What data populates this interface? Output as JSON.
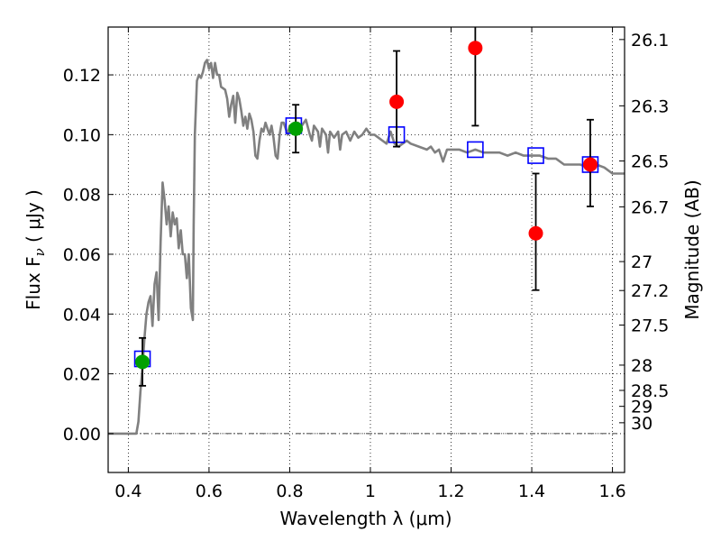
{
  "chart_data": {
    "type": "scatter",
    "title": "",
    "xlabel": "Wavelength  λ (μm)",
    "ylabel": "Flux  F",
    "ylabel_subscript": "ν",
    "ylabel_unit": " ( μJy )",
    "y2label": "Magnitude (AB)",
    "xlim": [
      0.35,
      1.63
    ],
    "ylim": [
      -0.013,
      0.136
    ],
    "grid": true,
    "x_ticks": [
      0.4,
      0.6,
      0.8,
      1.0,
      1.2,
      1.4,
      1.6
    ],
    "x_tick_labels": [
      "0.4",
      "0.6",
      "0.8",
      "1",
      "1.2",
      "1.4",
      "1.6"
    ],
    "y_ticks": [
      0.0,
      0.02,
      0.04,
      0.06,
      0.08,
      0.1,
      0.12
    ],
    "y_tick_labels": [
      "0.00",
      "0.02",
      "0.04",
      "0.06",
      "0.08",
      "0.10",
      "0.12"
    ],
    "y2_tick_labels": [
      "26.1",
      "26.3",
      "26.5",
      "26.7",
      "27",
      "27.2",
      "27.5",
      "28",
      "28.5",
      "29",
      "30"
    ],
    "y2_tick_values": [
      26.1,
      26.3,
      26.5,
      26.7,
      27.0,
      27.2,
      27.5,
      28.0,
      28.5,
      29.0,
      30.0
    ],
    "colors": {
      "model": "#808080",
      "model_photometry": "#0000ff",
      "detection": "#00a000",
      "upper_band": "#ff0000",
      "errorbar": "#000000",
      "zero_line": "#000000"
    },
    "series": [
      {
        "kind": "line",
        "points": [
          [
            0.35,
            0.0
          ],
          [
            0.41,
            0.0
          ],
          [
            0.42,
            0.0
          ],
          [
            0.425,
            0.004
          ],
          [
            0.43,
            0.014
          ],
          [
            0.435,
            0.022
          ],
          [
            0.44,
            0.032
          ],
          [
            0.445,
            0.04
          ],
          [
            0.45,
            0.044
          ],
          [
            0.455,
            0.046
          ],
          [
            0.46,
            0.036
          ],
          [
            0.465,
            0.05
          ],
          [
            0.47,
            0.054
          ],
          [
            0.475,
            0.038
          ],
          [
            0.48,
            0.064
          ],
          [
            0.485,
            0.084
          ],
          [
            0.49,
            0.078
          ],
          [
            0.495,
            0.07
          ],
          [
            0.5,
            0.076
          ],
          [
            0.505,
            0.066
          ],
          [
            0.51,
            0.074
          ],
          [
            0.515,
            0.07
          ],
          [
            0.52,
            0.072
          ],
          [
            0.525,
            0.062
          ],
          [
            0.53,
            0.068
          ],
          [
            0.535,
            0.06
          ],
          [
            0.54,
            0.06
          ],
          [
            0.545,
            0.052
          ],
          [
            0.55,
            0.06
          ],
          [
            0.555,
            0.042
          ],
          [
            0.56,
            0.038
          ],
          [
            0.562,
            0.07
          ],
          [
            0.565,
            0.1
          ],
          [
            0.57,
            0.118
          ],
          [
            0.575,
            0.12
          ],
          [
            0.58,
            0.119
          ],
          [
            0.585,
            0.121
          ],
          [
            0.59,
            0.124
          ],
          [
            0.595,
            0.125
          ],
          [
            0.6,
            0.122
          ],
          [
            0.605,
            0.124
          ],
          [
            0.61,
            0.119
          ],
          [
            0.615,
            0.124
          ],
          [
            0.62,
            0.12
          ],
          [
            0.625,
            0.12
          ],
          [
            0.63,
            0.116
          ],
          [
            0.64,
            0.115
          ],
          [
            0.645,
            0.112
          ],
          [
            0.65,
            0.106
          ],
          [
            0.655,
            0.11
          ],
          [
            0.66,
            0.113
          ],
          [
            0.665,
            0.104
          ],
          [
            0.67,
            0.114
          ],
          [
            0.675,
            0.112
          ],
          [
            0.68,
            0.108
          ],
          [
            0.685,
            0.103
          ],
          [
            0.69,
            0.106
          ],
          [
            0.695,
            0.102
          ],
          [
            0.7,
            0.107
          ],
          [
            0.705,
            0.105
          ],
          [
            0.71,
            0.101
          ],
          [
            0.715,
            0.093
          ],
          [
            0.72,
            0.092
          ],
          [
            0.725,
            0.098
          ],
          [
            0.73,
            0.102
          ],
          [
            0.735,
            0.101
          ],
          [
            0.74,
            0.104
          ],
          [
            0.745,
            0.102
          ],
          [
            0.75,
            0.1
          ],
          [
            0.755,
            0.103
          ],
          [
            0.76,
            0.099
          ],
          [
            0.765,
            0.093
          ],
          [
            0.77,
            0.092
          ],
          [
            0.775,
            0.1
          ],
          [
            0.78,
            0.104
          ],
          [
            0.785,
            0.104
          ],
          [
            0.79,
            0.102
          ],
          [
            0.795,
            0.1
          ],
          [
            0.8,
            0.103
          ],
          [
            0.81,
            0.102
          ],
          [
            0.82,
            0.104
          ],
          [
            0.83,
            0.103
          ],
          [
            0.84,
            0.105
          ],
          [
            0.85,
            0.1
          ],
          [
            0.855,
            0.098
          ],
          [
            0.86,
            0.103
          ],
          [
            0.87,
            0.101
          ],
          [
            0.875,
            0.096
          ],
          [
            0.88,
            0.102
          ],
          [
            0.89,
            0.1
          ],
          [
            0.895,
            0.094
          ],
          [
            0.9,
            0.101
          ],
          [
            0.91,
            0.099
          ],
          [
            0.92,
            0.101
          ],
          [
            0.925,
            0.095
          ],
          [
            0.93,
            0.1
          ],
          [
            0.94,
            0.101
          ],
          [
            0.95,
            0.098
          ],
          [
            0.96,
            0.101
          ],
          [
            0.97,
            0.099
          ],
          [
            0.98,
            0.1
          ],
          [
            0.99,
            0.102
          ],
          [
            1.0,
            0.1
          ],
          [
            1.01,
            0.1
          ],
          [
            1.02,
            0.099
          ],
          [
            1.03,
            0.098
          ],
          [
            1.04,
            0.097
          ],
          [
            1.05,
            0.101
          ],
          [
            1.06,
            0.097
          ],
          [
            1.07,
            0.096
          ],
          [
            1.08,
            0.097
          ],
          [
            1.09,
            0.098
          ],
          [
            1.1,
            0.097
          ],
          [
            1.12,
            0.096
          ],
          [
            1.14,
            0.095
          ],
          [
            1.15,
            0.096
          ],
          [
            1.16,
            0.094
          ],
          [
            1.17,
            0.095
          ],
          [
            1.18,
            0.091
          ],
          [
            1.19,
            0.095
          ],
          [
            1.2,
            0.095
          ],
          [
            1.22,
            0.095
          ],
          [
            1.24,
            0.094
          ],
          [
            1.26,
            0.095
          ],
          [
            1.28,
            0.094
          ],
          [
            1.3,
            0.094
          ],
          [
            1.32,
            0.094
          ],
          [
            1.34,
            0.093
          ],
          [
            1.36,
            0.094
          ],
          [
            1.38,
            0.093
          ],
          [
            1.4,
            0.093
          ],
          [
            1.42,
            0.093
          ],
          [
            1.44,
            0.092
          ],
          [
            1.46,
            0.092
          ],
          [
            1.48,
            0.09
          ],
          [
            1.5,
            0.09
          ],
          [
            1.52,
            0.09
          ],
          [
            1.54,
            0.089
          ],
          [
            1.56,
            0.09
          ],
          [
            1.58,
            0.089
          ],
          [
            1.6,
            0.087
          ],
          [
            1.63,
            0.087
          ]
        ]
      },
      {
        "kind": "open-squares",
        "x": [
          0.435,
          0.81,
          1.065,
          1.26,
          1.41,
          1.545
        ],
        "y": [
          0.025,
          0.103,
          0.1,
          0.095,
          0.093,
          0.09
        ]
      },
      {
        "kind": "filled-circles",
        "color_key": "detection",
        "x": [
          0.435,
          0.815
        ],
        "y": [
          0.024,
          0.102
        ],
        "yerr_low": [
          0.016,
          0.094
        ],
        "yerr_high": [
          0.032,
          0.11
        ]
      },
      {
        "kind": "filled-circles",
        "color_key": "upper_band",
        "x": [
          1.065,
          1.26,
          1.41,
          1.545
        ],
        "y": [
          0.111,
          0.129,
          0.067,
          0.09
        ],
        "yerr_low": [
          0.096,
          0.103,
          0.048,
          0.076
        ],
        "yerr_high": [
          0.128,
          0.136,
          0.087,
          0.105
        ]
      }
    ]
  }
}
